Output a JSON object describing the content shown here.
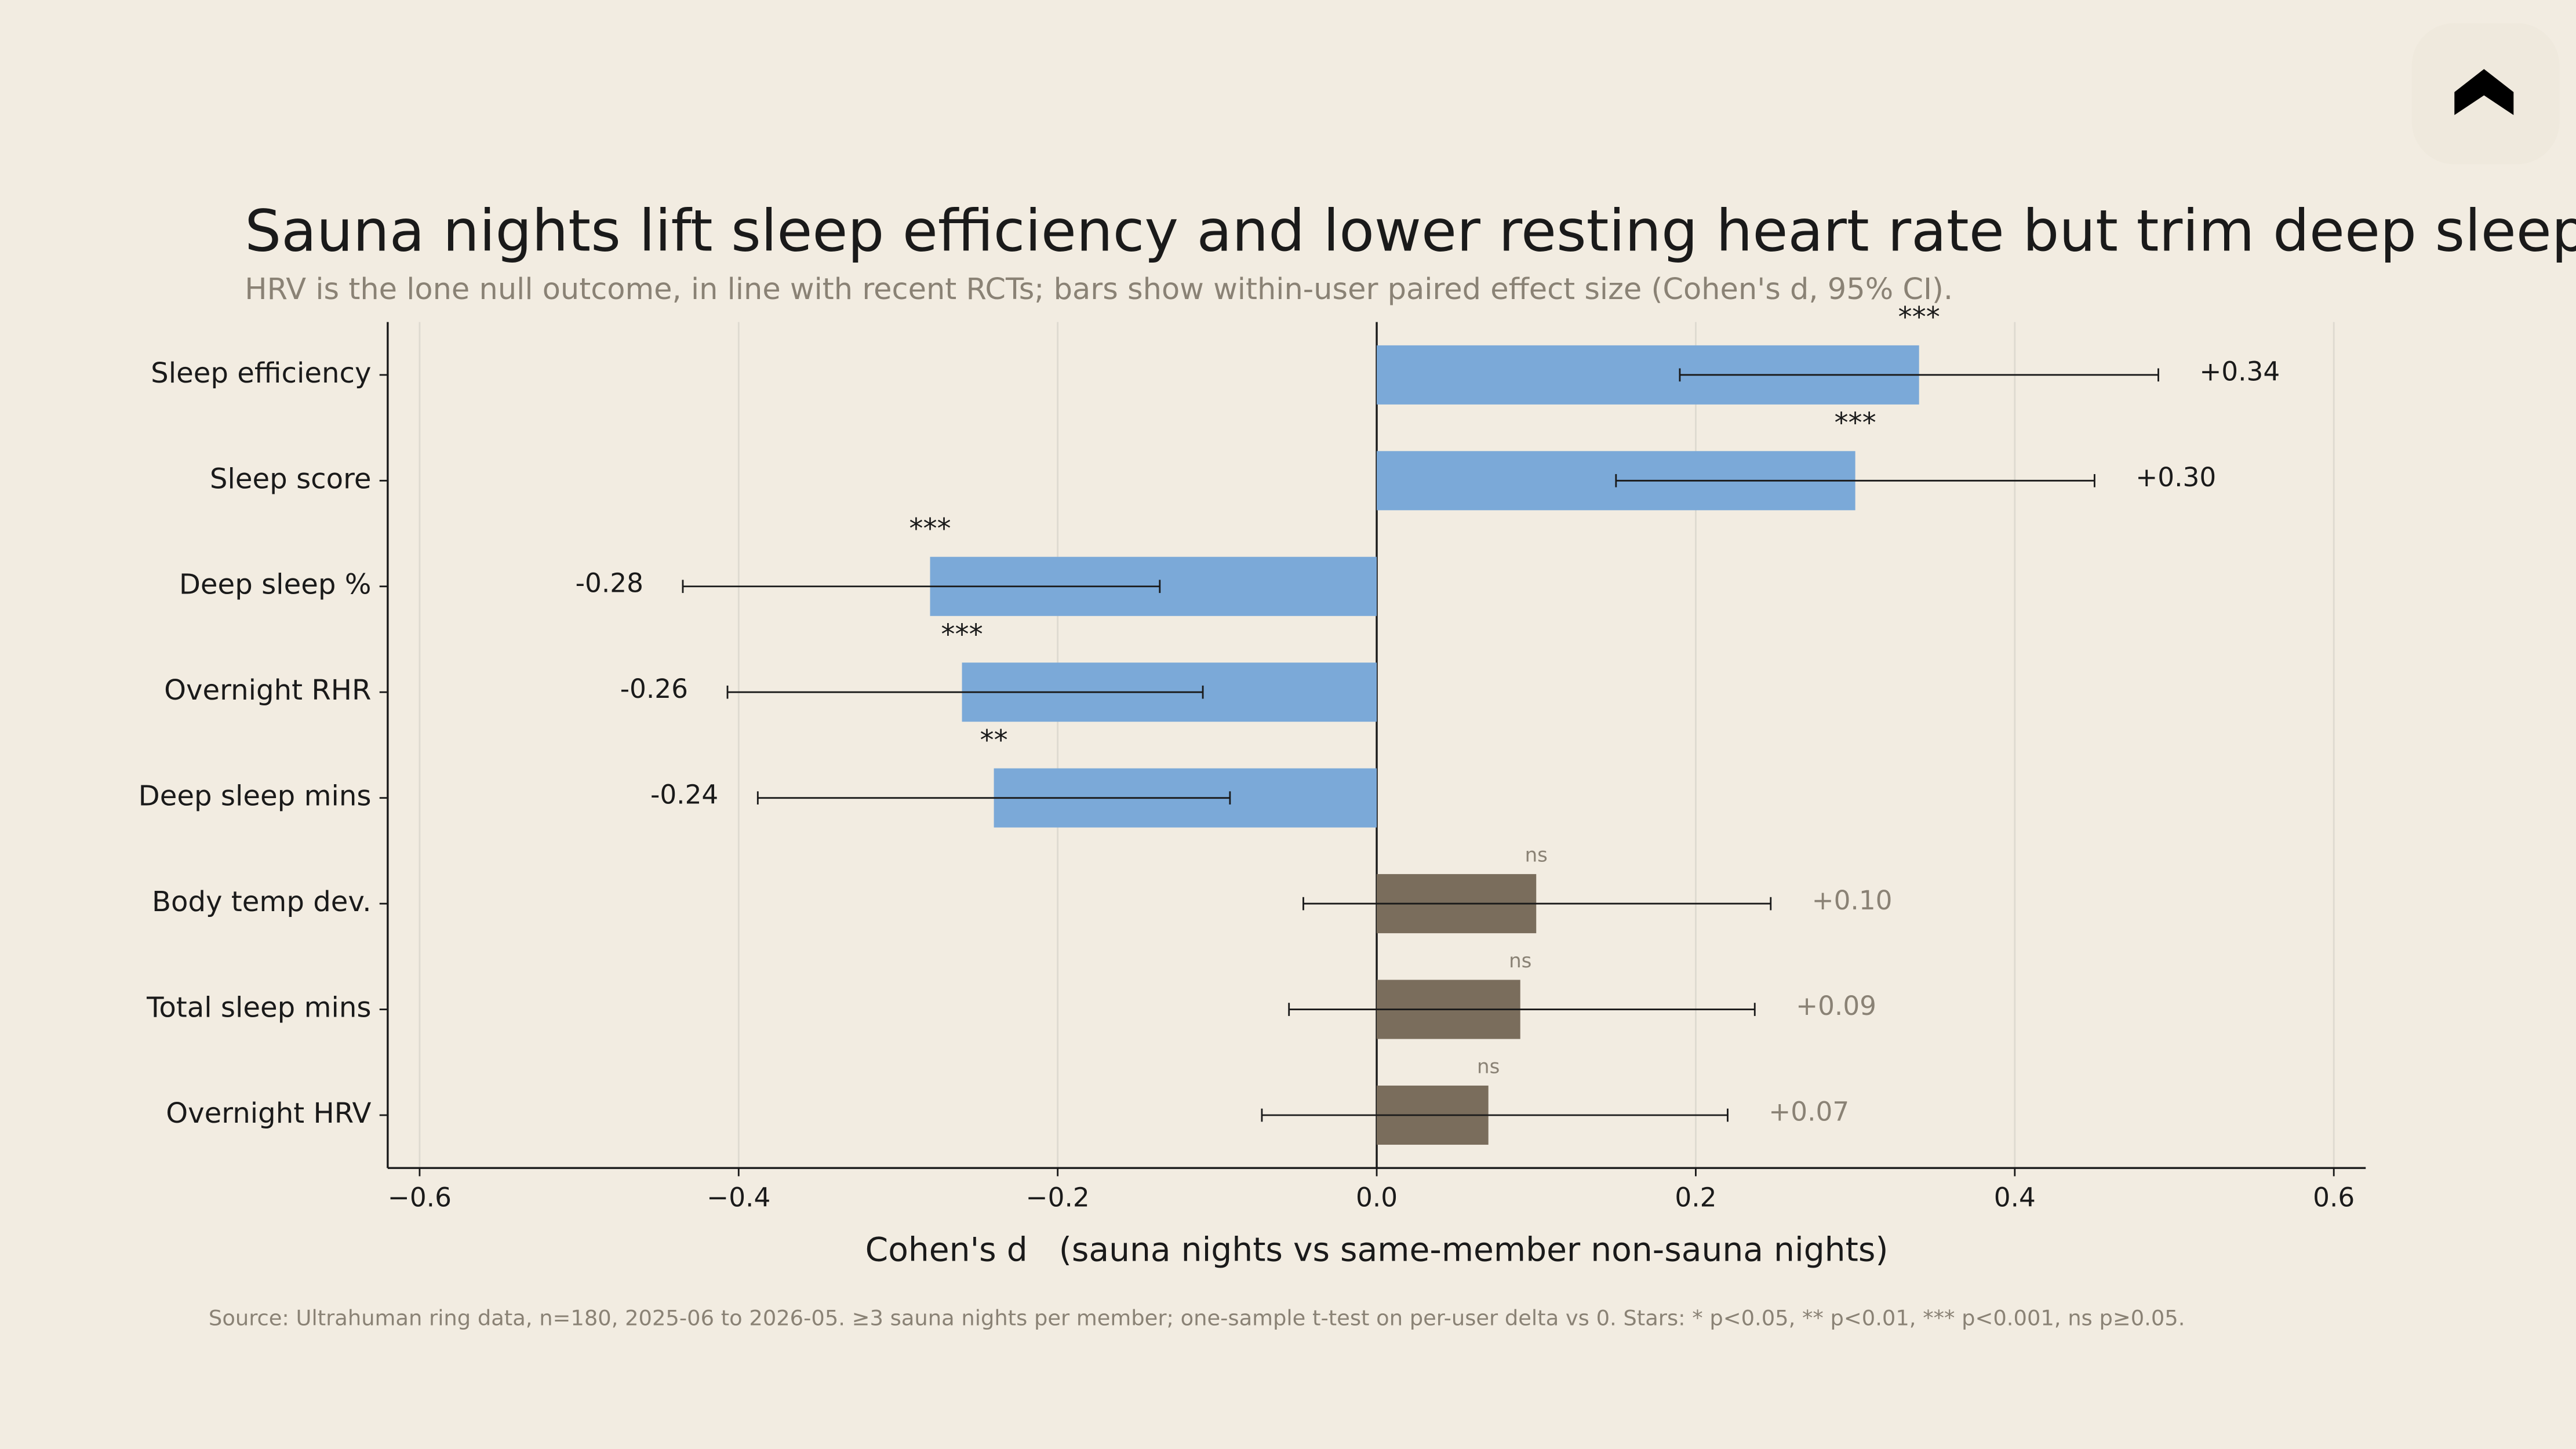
{
  "chart_data": {
    "type": "hbar_ci",
    "title": "Sauna nights lift sleep efficiency and lower resting heart rate but trim deep sleep",
    "subtitle": "HRV is the lone null outcome, in line with recent RCTs; bars show within-user paired effect size (Cohen's d, 95% CI).",
    "x_label": "Cohen's d   (sauna nights vs same-member non-sauna nights)",
    "source": "Source: Ultrahuman ring data, n=180, 2025-06 to 2026-05. ≥3 sauna nights per member; one-sample t-test on per-user delta vs 0. Stars: * p<0.05, ** p<0.01, *** p<0.001, ns p≥0.05.",
    "categories": [
      "Sleep efficiency",
      "Sleep score",
      "Deep sleep %",
      "Overnight RHR",
      "Deep sleep mins",
      "Body temp dev.",
      "Total sleep mins",
      "Overnight HRV"
    ],
    "values": [
      0.34,
      0.3,
      -0.28,
      -0.26,
      -0.24,
      0.1,
      0.09,
      0.07
    ],
    "value_labels": [
      "+0.34",
      "+0.30",
      "-0.28",
      "-0.26",
      "-0.24",
      "+0.10",
      "+0.09",
      "+0.07"
    ],
    "ci_low": [
      0.19,
      0.15,
      -0.435,
      -0.407,
      -0.388,
      -0.046,
      -0.055,
      -0.072
    ],
    "ci_high": [
      0.49,
      0.45,
      -0.136,
      -0.109,
      -0.092,
      0.247,
      0.237,
      0.22
    ],
    "significance": [
      "***",
      "***",
      "***",
      "***",
      "**",
      "ns",
      "ns",
      "ns"
    ],
    "colors": [
      "#7ba9d8",
      "#7ba9d8",
      "#7ba9d8",
      "#7ba9d8",
      "#7ba9d8",
      "#7a6d5c",
      "#7a6d5c",
      "#7a6d5c"
    ],
    "xlim": [
      -0.62,
      0.62
    ],
    "xticks": [
      {
        "value": -0.6,
        "label": "−0.6"
      },
      {
        "value": -0.4,
        "label": "−0.4"
      },
      {
        "value": -0.2,
        "label": "−0.2"
      },
      {
        "value": 0,
        "label": "0.0"
      },
      0.2,
      0.4,
      0.6
    ],
    "grid": true
  }
}
